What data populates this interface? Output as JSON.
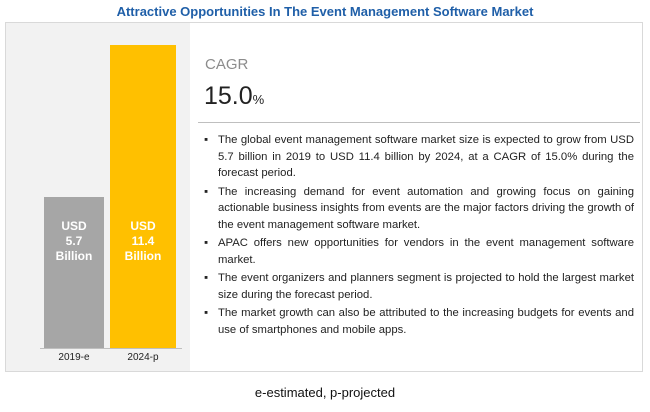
{
  "chart_data": {
    "type": "bar",
    "title": "Attractive Opportunities In The Event Management Software Market",
    "categories": [
      "2019-e",
      "2024-p"
    ],
    "values": [
      5.7,
      11.4
    ],
    "value_labels": [
      "USD 5.7 Billion",
      "USD 11.4 Billion"
    ],
    "colors": [
      "#a6a6a6",
      "#ffc000"
    ],
    "cagr": {
      "label": "CAGR",
      "value": "15.0",
      "unit": "%"
    },
    "bullets": [
      "The global event management software market size is expected to grow from USD 5.7 billion in 2019 to USD 11.4 billion by 2024, at a CAGR of 15.0% during the forecast period.",
      "The increasing demand for event automation and growing focus on gaining actionable business insights from events are the major factors driving the growth of the event management software market.",
      "APAC offers new opportunities for vendors in the event management software market.",
      "The event organizers and planners segment is projected to hold the largest market size during the forecast period.",
      "The market growth can also be attributed to the increasing budgets for events and use of smartphones and mobile apps."
    ],
    "footnote": "e-estimated, p-projected"
  }
}
